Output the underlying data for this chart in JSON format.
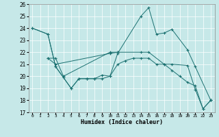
{
  "xlabel": "Humidex (Indice chaleur)",
  "xlim": [
    -0.5,
    23.5
  ],
  "ylim": [
    17,
    26
  ],
  "yticks": [
    17,
    18,
    19,
    20,
    21,
    22,
    23,
    24,
    25,
    26
  ],
  "xticks": [
    0,
    1,
    2,
    3,
    4,
    5,
    6,
    7,
    8,
    9,
    10,
    11,
    12,
    13,
    14,
    15,
    16,
    17,
    18,
    19,
    20,
    21,
    22,
    23
  ],
  "bg_color": "#c6e8e8",
  "line_color": "#1a7070",
  "grid_color": "#ffffff",
  "series": [
    {
      "x": [
        0,
        2,
        3,
        4,
        5,
        6,
        7,
        8,
        9,
        10,
        11,
        14,
        15,
        16,
        17,
        18,
        20,
        21,
        23
      ],
      "y": [
        24.0,
        23.5,
        20.8,
        19.9,
        19.0,
        19.8,
        19.8,
        19.8,
        20.1,
        20.0,
        21.9,
        25.0,
        25.7,
        23.5,
        23.6,
        23.9,
        22.2,
        20.8,
        18.0
      ]
    },
    {
      "x": [
        2,
        3,
        4,
        10,
        11
      ],
      "y": [
        21.5,
        21.5,
        20.0,
        22.0,
        22.0
      ]
    },
    {
      "x": [
        2,
        3,
        10,
        11,
        14,
        15,
        17,
        18,
        20,
        21,
        22,
        23
      ],
      "y": [
        21.5,
        21.0,
        21.9,
        22.0,
        22.0,
        22.0,
        21.0,
        21.0,
        20.9,
        18.9,
        17.3,
        18.0
      ]
    },
    {
      "x": [
        0,
        2,
        3,
        5,
        6,
        7,
        8,
        9,
        10,
        11,
        12,
        13,
        14,
        15,
        16,
        17,
        18,
        19,
        20,
        21,
        22,
        23
      ],
      "y": [
        24.0,
        23.5,
        20.8,
        19.0,
        19.8,
        19.8,
        19.8,
        19.8,
        20.0,
        21.0,
        21.3,
        21.5,
        21.5,
        21.5,
        21.0,
        21.0,
        20.5,
        20.0,
        19.5,
        19.2,
        17.3,
        18.0
      ]
    }
  ]
}
